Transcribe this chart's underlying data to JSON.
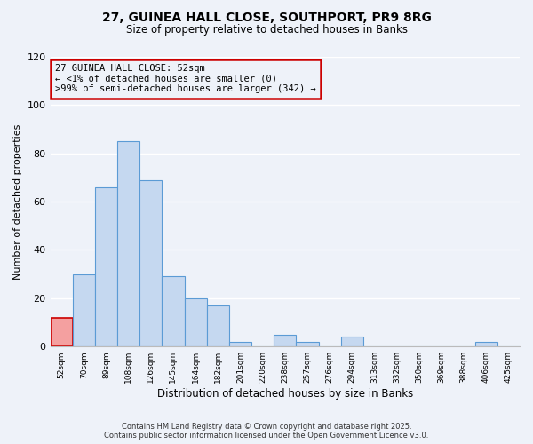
{
  "title": "27, GUINEA HALL CLOSE, SOUTHPORT, PR9 8RG",
  "subtitle": "Size of property relative to detached houses in Banks",
  "xlabel": "Distribution of detached houses by size in Banks",
  "ylabel": "Number of detached properties",
  "bar_color": "#c5d8f0",
  "bar_edge_color": "#5b9bd5",
  "highlight_bar_color": "#f4a0a0",
  "highlight_bar_edge_color": "#cc0000",
  "annotation_box_edge_color": "#cc0000",
  "background_color": "#eef2f9",
  "grid_color": "#ffffff",
  "bin_labels": [
    "52sqm",
    "70sqm",
    "89sqm",
    "108sqm",
    "126sqm",
    "145sqm",
    "164sqm",
    "182sqm",
    "201sqm",
    "220sqm",
    "238sqm",
    "257sqm",
    "276sqm",
    "294sqm",
    "313sqm",
    "332sqm",
    "350sqm",
    "369sqm",
    "388sqm",
    "406sqm",
    "425sqm"
  ],
  "counts": [
    12,
    30,
    66,
    85,
    69,
    29,
    20,
    17,
    2,
    0,
    5,
    2,
    0,
    4,
    0,
    0,
    0,
    0,
    0,
    2,
    0
  ],
  "highlight_bin_index": 0,
  "ylim": [
    0,
    120
  ],
  "yticks": [
    0,
    20,
    40,
    60,
    80,
    100,
    120
  ],
  "annotation_line1": "27 GUINEA HALL CLOSE: 52sqm",
  "annotation_line2": "← <1% of detached houses are smaller (0)",
  "annotation_line3": ">99% of semi-detached houses are larger (342) →",
  "footnote1": "Contains HM Land Registry data © Crown copyright and database right 2025.",
  "footnote2": "Contains public sector information licensed under the Open Government Licence v3.0."
}
